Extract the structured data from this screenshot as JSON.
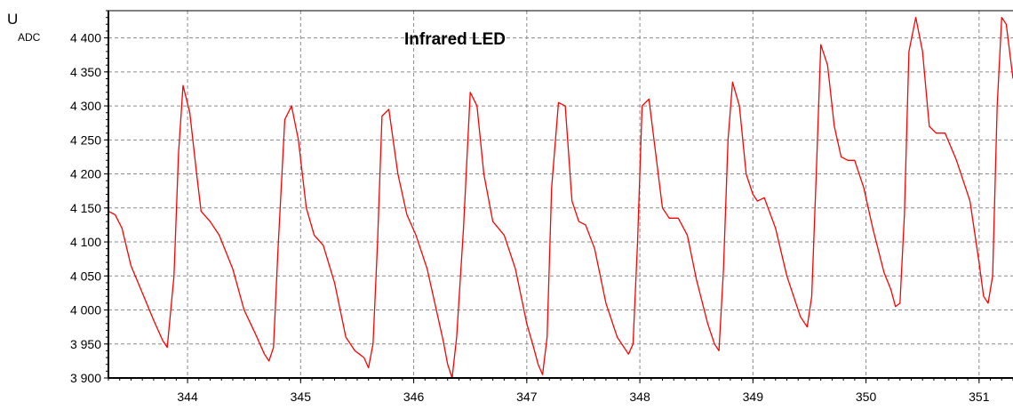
{
  "chart_data": {
    "type": "line",
    "title": "Infrared LED",
    "ylabel": "U",
    "ylabel_subscript": "ADC",
    "xlabel": "",
    "xlim": [
      343.3,
      351.3
    ],
    "ylim": [
      3900,
      4440
    ],
    "x_ticks": [
      344,
      345,
      346,
      347,
      348,
      349,
      350,
      351
    ],
    "x_tick_labels": [
      "344",
      "345",
      "346",
      "347",
      "348",
      "349",
      "350",
      "351"
    ],
    "y_ticks": [
      3900,
      3950,
      4000,
      4050,
      4100,
      4150,
      4200,
      4250,
      4300,
      4350,
      4400
    ],
    "y_tick_labels": [
      "3 900",
      "3 950",
      "4 000",
      "4 050",
      "4 100",
      "4 150",
      "4 200",
      "4 250",
      "4 300",
      "4 350",
      "4 400"
    ],
    "grid": true,
    "legend": "none",
    "line_color": "#ff0000",
    "series": [
      {
        "x": [
          343.3,
          343.36,
          343.42,
          343.5,
          343.6,
          343.7,
          343.78,
          343.82,
          343.88,
          343.92,
          343.96,
          344.02,
          344.08,
          344.12,
          344.2,
          344.28,
          344.4,
          344.5,
          344.6,
          344.68,
          344.72,
          344.76,
          344.8,
          344.86,
          344.92,
          344.98,
          345.05,
          345.12,
          345.2,
          345.3,
          345.4,
          345.48,
          345.52,
          345.56,
          345.6,
          345.64,
          345.68,
          345.72,
          345.78,
          345.86,
          345.94,
          346.02,
          346.12,
          346.22,
          346.26,
          346.3,
          346.34,
          346.38,
          346.44,
          346.5,
          346.56,
          346.62,
          346.7,
          346.8,
          346.9,
          347.0,
          347.06,
          347.1,
          347.14,
          347.18,
          347.22,
          347.28,
          347.34,
          347.4,
          347.46,
          347.52,
          347.6,
          347.7,
          347.8,
          347.86,
          347.9,
          347.94,
          347.98,
          348.02,
          348.08,
          348.14,
          348.2,
          348.26,
          348.34,
          348.42,
          348.5,
          348.6,
          348.66,
          348.7,
          348.74,
          348.78,
          348.82,
          348.88,
          348.94,
          349.0,
          349.04,
          349.1,
          349.2,
          349.3,
          349.42,
          349.48,
          349.52,
          349.56,
          349.6,
          349.66,
          349.72,
          349.78,
          349.84,
          349.9,
          349.98,
          350.06,
          350.16,
          350.22,
          350.26,
          350.3,
          350.34,
          350.38,
          350.44,
          350.5,
          350.56,
          350.62,
          350.7,
          350.8,
          350.92,
          351.0,
          351.04,
          351.08,
          351.12,
          351.16,
          351.2,
          351.24,
          351.3
        ],
        "values": [
          4145,
          4140,
          4120,
          4065,
          4025,
          3985,
          3955,
          3945,
          4050,
          4230,
          4330,
          4290,
          4200,
          4145,
          4130,
          4110,
          4060,
          4000,
          3965,
          3935,
          3925,
          3945,
          4090,
          4280,
          4300,
          4250,
          4150,
          4110,
          4095,
          4040,
          3960,
          3940,
          3935,
          3930,
          3915,
          3950,
          4100,
          4285,
          4295,
          4200,
          4140,
          4110,
          4060,
          3985,
          3955,
          3920,
          3900,
          3960,
          4120,
          4320,
          4300,
          4200,
          4130,
          4110,
          4060,
          3980,
          3945,
          3920,
          3905,
          3960,
          4180,
          4305,
          4300,
          4160,
          4130,
          4125,
          4090,
          4010,
          3960,
          3945,
          3935,
          3950,
          4100,
          4300,
          4310,
          4230,
          4150,
          4135,
          4135,
          4110,
          4045,
          3980,
          3950,
          3940,
          4060,
          4250,
          4335,
          4300,
          4200,
          4170,
          4160,
          4165,
          4120,
          4050,
          3990,
          3975,
          4020,
          4200,
          4390,
          4360,
          4270,
          4225,
          4220,
          4220,
          4180,
          4120,
          4055,
          4030,
          4005,
          4010,
          4140,
          4380,
          4430,
          4380,
          4270,
          4260,
          4260,
          4220,
          4160,
          4070,
          4020,
          4010,
          4050,
          4300,
          4430,
          4420,
          4340
        ]
      }
    ]
  }
}
